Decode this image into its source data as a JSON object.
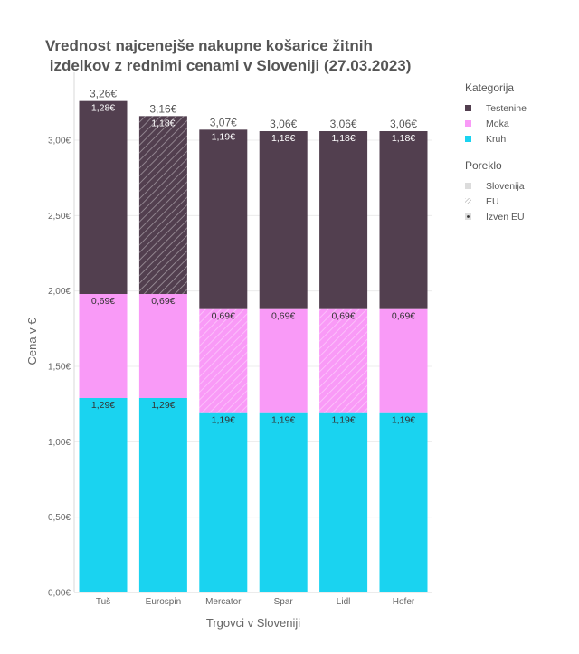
{
  "chart_data": {
    "type": "bar",
    "stacked": true,
    "title": "Vrednost najcenejše nakupne košarice žitnih\n izdelkov z rednimi cenami v Sloveniji (27.03.2023)",
    "xlabel": "Trgovci v Sloveniji",
    "ylabel": "Cena v €",
    "ylim": [
      0,
      3.3
    ],
    "yticks": [
      0,
      0.5,
      1.0,
      1.5,
      2.0,
      2.5,
      3.0
    ],
    "ytick_labels": [
      "0,00€",
      "0,50€",
      "1,00€",
      "1,50€",
      "2,00€",
      "2,50€",
      "3,00€"
    ],
    "categories": [
      "Tuš",
      "Eurospin",
      "Mercator",
      "Spar",
      "Lidl",
      "Hofer"
    ],
    "totals": [
      3.26,
      3.16,
      3.07,
      3.06,
      3.06,
      3.06
    ],
    "total_labels": [
      "3,26€",
      "3,16€",
      "3,07€",
      "3,06€",
      "3,06€",
      "3,06€"
    ],
    "series": [
      {
        "name": "Kruh",
        "color": "#1ad3f0",
        "values": [
          1.29,
          1.29,
          1.19,
          1.19,
          1.19,
          1.19
        ],
        "labels": [
          "1,29€",
          "1,29€",
          "1,19€",
          "1,19€",
          "1,19€",
          "1,19€"
        ],
        "origin": [
          "Slovenija",
          "Slovenija",
          "Slovenija",
          "Slovenija",
          "Slovenija",
          "Slovenija"
        ]
      },
      {
        "name": "Moka",
        "color": "#f99af7",
        "values": [
          0.69,
          0.69,
          0.69,
          0.69,
          0.69,
          0.69
        ],
        "labels": [
          "0,69€",
          "0,69€",
          "0,69€",
          "0,69€",
          "0,69€",
          "0,69€"
        ],
        "origin": [
          "Slovenija",
          "Slovenija",
          "EU",
          "Slovenija",
          "EU",
          "Slovenija"
        ]
      },
      {
        "name": "Testenine",
        "color": "#523f4f",
        "values": [
          1.28,
          1.18,
          1.19,
          1.18,
          1.18,
          1.18
        ],
        "labels": [
          "1,28€",
          "1,18€",
          "1,19€",
          "1,18€",
          "1,18€",
          "1,18€"
        ],
        "origin": [
          "Slovenija",
          "EU",
          "Slovenija",
          "Slovenija",
          "Slovenija",
          "Slovenija"
        ]
      }
    ],
    "legend": {
      "placement": "right",
      "category_title": "Kategorija",
      "category_items": [
        {
          "label": "Testenine",
          "color": "#523f4f"
        },
        {
          "label": "Moka",
          "color": "#f99af7"
        },
        {
          "label": "Kruh",
          "color": "#1ad3f0"
        }
      ],
      "origin_title": "Poreklo",
      "origin_items": [
        {
          "label": "Slovenija",
          "pattern": "solid"
        },
        {
          "label": "EU",
          "pattern": "hatch"
        },
        {
          "label": "Izven EU",
          "pattern": "dot"
        }
      ]
    },
    "grid": true
  }
}
